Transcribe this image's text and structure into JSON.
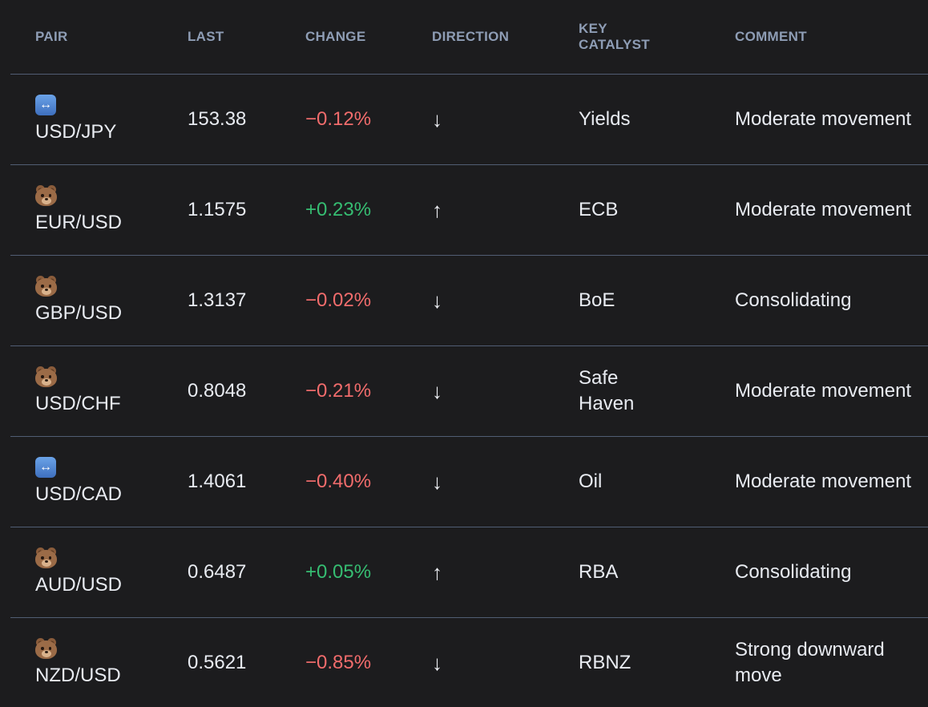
{
  "table": {
    "columns": [
      "PAIR",
      "LAST",
      "CHANGE",
      "DIRECTION",
      "KEY CATALYST",
      "COMMENT"
    ],
    "rows": [
      {
        "icon": "left-right-arrow",
        "pair": "USD/JPY",
        "last": "153.38",
        "change": "−0.12%",
        "trend": "down",
        "direction": "↓",
        "catalyst": "Yields",
        "comment": "Moderate movement"
      },
      {
        "icon": "bear-face",
        "pair": "EUR/USD",
        "last": "1.1575",
        "change": "+0.23%",
        "trend": "up",
        "direction": "↑",
        "catalyst": "ECB",
        "comment": "Moderate movement"
      },
      {
        "icon": "bear-face",
        "pair": "GBP/USD",
        "last": "1.3137",
        "change": "−0.02%",
        "trend": "down",
        "direction": "↓",
        "catalyst": "BoE",
        "comment": "Consolidating"
      },
      {
        "icon": "bear-face",
        "pair": "USD/CHF",
        "last": "0.8048",
        "change": "−0.21%",
        "trend": "down",
        "direction": "↓",
        "catalyst": "Safe Haven",
        "comment": "Moderate movement"
      },
      {
        "icon": "left-right-arrow",
        "pair": "USD/CAD",
        "last": "1.4061",
        "change": "−0.40%",
        "trend": "down",
        "direction": "↓",
        "catalyst": "Oil",
        "comment": "Moderate movement"
      },
      {
        "icon": "bear-face",
        "pair": "AUD/USD",
        "last": "0.6487",
        "change": "+0.05%",
        "trend": "up",
        "direction": "↑",
        "catalyst": "RBA",
        "comment": "Consolidating"
      },
      {
        "icon": "bear-face",
        "pair": "NZD/USD",
        "last": "0.5621",
        "change": "−0.85%",
        "trend": "down",
        "direction": "↓",
        "catalyst": "RBNZ",
        "comment": "Strong downward move"
      }
    ],
    "colors": {
      "background": "#1c1c1e",
      "divider": "#515d73",
      "header_text": "#8e9db5",
      "body_text": "#e8ebf1",
      "negative": "#f16c6c",
      "positive": "#36bd72"
    }
  }
}
